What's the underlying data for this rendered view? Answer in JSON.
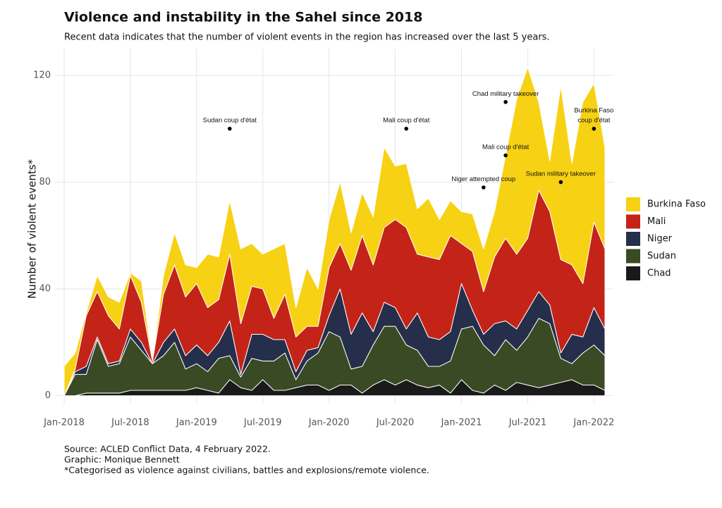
{
  "chart_data": {
    "type": "stacked-area",
    "title": "Violence and instability in the Sahel since 2018",
    "subtitle": "Recent data indicates that the number of violent events in the region has increased over the last 5 years.",
    "y_label": "Number of violent events*",
    "notes": [
      "Source: ACLED Conflict Data, 4 February 2022.",
      "Graphic: Monique Bennett",
      "*Categorised as violence against civilians, battles and explosions/remote violence."
    ],
    "x": [
      "2018-01",
      "2018-02",
      "2018-03",
      "2018-04",
      "2018-05",
      "2018-06",
      "2018-07",
      "2018-08",
      "2018-09",
      "2018-10",
      "2018-11",
      "2018-12",
      "2019-01",
      "2019-02",
      "2019-03",
      "2019-04",
      "2019-05",
      "2019-06",
      "2019-07",
      "2019-08",
      "2019-09",
      "2019-10",
      "2019-11",
      "2019-12",
      "2020-01",
      "2020-02",
      "2020-03",
      "2020-04",
      "2020-05",
      "2020-06",
      "2020-07",
      "2020-08",
      "2020-09",
      "2020-10",
      "2020-11",
      "2020-12",
      "2021-01",
      "2021-02",
      "2021-03",
      "2021-04",
      "2021-05",
      "2021-06",
      "2021-07",
      "2021-08",
      "2021-09",
      "2021-10",
      "2021-11",
      "2021-12",
      "2022-01",
      "2022-02"
    ],
    "xlim": [
      "2018-01",
      "2022-02"
    ],
    "xticks": [
      {
        "value": "2018-01",
        "label": "Jan-2018"
      },
      {
        "value": "2018-07",
        "label": "Jul-2018"
      },
      {
        "value": "2019-01",
        "label": "Jan-2019"
      },
      {
        "value": "2019-07",
        "label": "Jul-2019"
      },
      {
        "value": "2020-01",
        "label": "Jan-2020"
      },
      {
        "value": "2020-07",
        "label": "Jul-2020"
      },
      {
        "value": "2021-01",
        "label": "Jan-2021"
      },
      {
        "value": "2021-07",
        "label": "Jul-2021"
      },
      {
        "value": "2022-01",
        "label": "Jan-2022"
      }
    ],
    "ylim": [
      -3,
      130
    ],
    "yticks": [
      0,
      40,
      80,
      120
    ],
    "grid": true,
    "legend": "right",
    "series": [
      {
        "name": "Burkina Faso",
        "color": "#f7d114",
        "values": [
          11,
          6,
          1,
          6,
          7,
          10,
          1,
          8,
          0,
          7,
          12,
          12,
          6,
          20,
          16,
          20,
          28,
          16,
          13,
          26,
          19,
          11,
          22,
          14,
          18,
          23,
          14,
          16,
          18,
          30,
          20,
          24,
          17,
          22,
          15,
          13,
          12,
          14,
          16,
          17,
          31,
          58,
          64,
          33,
          19,
          65,
          38,
          68,
          52,
          38
        ]
      },
      {
        "name": "Mali",
        "color": "#c42418",
        "values": [
          0,
          1,
          19,
          17,
          18,
          12,
          20,
          15,
          1,
          18,
          24,
          22,
          23,
          18,
          16,
          25,
          19,
          18,
          17,
          8,
          17,
          13,
          9,
          8,
          18,
          17,
          24,
          29,
          25,
          28,
          33,
          38,
          22,
          30,
          30,
          36,
          15,
          22,
          16,
          25,
          31,
          28,
          27,
          38,
          35,
          35,
          26,
          20,
          32,
          30
        ]
      },
      {
        "name": "Niger",
        "color": "#252e4a",
        "values": [
          0,
          1,
          3,
          1,
          1,
          1,
          3,
          3,
          0,
          5,
          5,
          5,
          7,
          6,
          6,
          13,
          1,
          9,
          10,
          8,
          5,
          3,
          4,
          2,
          6,
          18,
          13,
          20,
          5,
          9,
          7,
          6,
          14,
          11,
          10,
          11,
          17,
          6,
          4,
          12,
          7,
          8,
          10,
          10,
          7,
          2,
          11,
          6,
          14,
          10
        ]
      },
      {
        "name": "Sudan",
        "color": "#3a4a24",
        "values": [
          0,
          8,
          7,
          20,
          10,
          11,
          20,
          15,
          10,
          13,
          18,
          8,
          9,
          7,
          13,
          9,
          4,
          12,
          7,
          11,
          14,
          3,
          9,
          12,
          22,
          18,
          6,
          10,
          15,
          20,
          22,
          13,
          13,
          8,
          7,
          12,
          19,
          24,
          18,
          11,
          19,
          12,
          18,
          26,
          23,
          9,
          6,
          12,
          15,
          13
        ]
      },
      {
        "name": "Chad",
        "color": "#1a1a1a",
        "values": [
          0,
          0,
          1,
          1,
          1,
          1,
          2,
          2,
          2,
          2,
          2,
          2,
          3,
          2,
          1,
          6,
          3,
          2,
          6,
          2,
          2,
          3,
          4,
          4,
          2,
          4,
          4,
          1,
          4,
          6,
          4,
          6,
          4,
          3,
          4,
          1,
          6,
          2,
          1,
          4,
          2,
          5,
          4,
          3,
          4,
          5,
          6,
          4,
          4,
          2
        ]
      }
    ],
    "annotations": [
      {
        "label": "Sudan coup d'état",
        "x": "2019-04",
        "y": 100
      },
      {
        "label": "Mali coup d'état",
        "x": "2020-08",
        "y": 100
      },
      {
        "label": "Chad military takeover",
        "x": "2021-05",
        "y": 110
      },
      {
        "label": "Mali coup d'état",
        "x": "2021-05",
        "y": 90
      },
      {
        "label": "Niger attempted coup",
        "x": "2021-03",
        "y": 78
      },
      {
        "label": "Sudan military takeover",
        "x": "2021-10",
        "y": 80
      },
      {
        "label": "Burkina Faso\ncoup d'état",
        "x": "2022-01",
        "y": 100
      }
    ]
  }
}
